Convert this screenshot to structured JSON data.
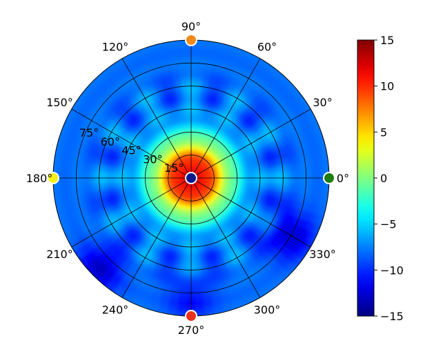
{
  "chart_data": {
    "type": "heatmap",
    "projection": "polar",
    "title": "",
    "theta_ticks": [
      {
        "value": 0,
        "label": "0°"
      },
      {
        "value": 30,
        "label": "30°"
      },
      {
        "value": 60,
        "label": "60°"
      },
      {
        "value": 90,
        "label": "90°"
      },
      {
        "value": 120,
        "label": "120°"
      },
      {
        "value": 150,
        "label": "150°"
      },
      {
        "value": 180,
        "label": "180°"
      },
      {
        "value": 210,
        "label": "210°"
      },
      {
        "value": 240,
        "label": "240°"
      },
      {
        "value": 270,
        "label": "270°"
      },
      {
        "value": 300,
        "label": "300°"
      },
      {
        "value": 330,
        "label": "330°"
      }
    ],
    "r_ticks": [
      {
        "value": 15,
        "label": "15°"
      },
      {
        "value": 30,
        "label": "30°"
      },
      {
        "value": 45,
        "label": "45°"
      },
      {
        "value": 60,
        "label": "60°"
      },
      {
        "value": 75,
        "label": "75°"
      }
    ],
    "rlim": [
      0,
      90
    ],
    "grid": true,
    "colormap": "jet",
    "colorbar": {
      "placement": "right",
      "vmin": -15,
      "vmax": 15,
      "ticks": [
        {
          "value": 15,
          "label": "15"
        },
        {
          "value": 10,
          "label": "10"
        },
        {
          "value": 5,
          "label": "5"
        },
        {
          "value": 0,
          "label": "0"
        },
        {
          "value": -5,
          "label": "−5"
        },
        {
          "value": -10,
          "label": "−10"
        },
        {
          "value": -15,
          "label": "−15"
        }
      ]
    },
    "field": {
      "description_units": "color value vs (theta deg, r deg)",
      "peak": {
        "theta": 0,
        "r": 0,
        "value": 13
      },
      "edge_value": -8,
      "lows": [
        {
          "theta": 225,
          "r": 85,
          "value": -13
        },
        {
          "theta": 330,
          "r": 75,
          "value": -13
        },
        {
          "theta": 270,
          "r": 80,
          "value": -11
        }
      ]
    },
    "markers": [
      {
        "theta": 0,
        "r": 0,
        "value": -13,
        "color": "#0d1a8c"
      },
      {
        "theta": 0,
        "r": 90,
        "value": 1,
        "color": "#1e7d10"
      },
      {
        "theta": 90,
        "r": 90,
        "value": 8,
        "color": "#f08a1a"
      },
      {
        "theta": 180,
        "r": 90,
        "value": 5,
        "color": "#f5f01a"
      },
      {
        "theta": 270,
        "r": 90,
        "value": 12,
        "color": "#e8321e"
      }
    ]
  }
}
